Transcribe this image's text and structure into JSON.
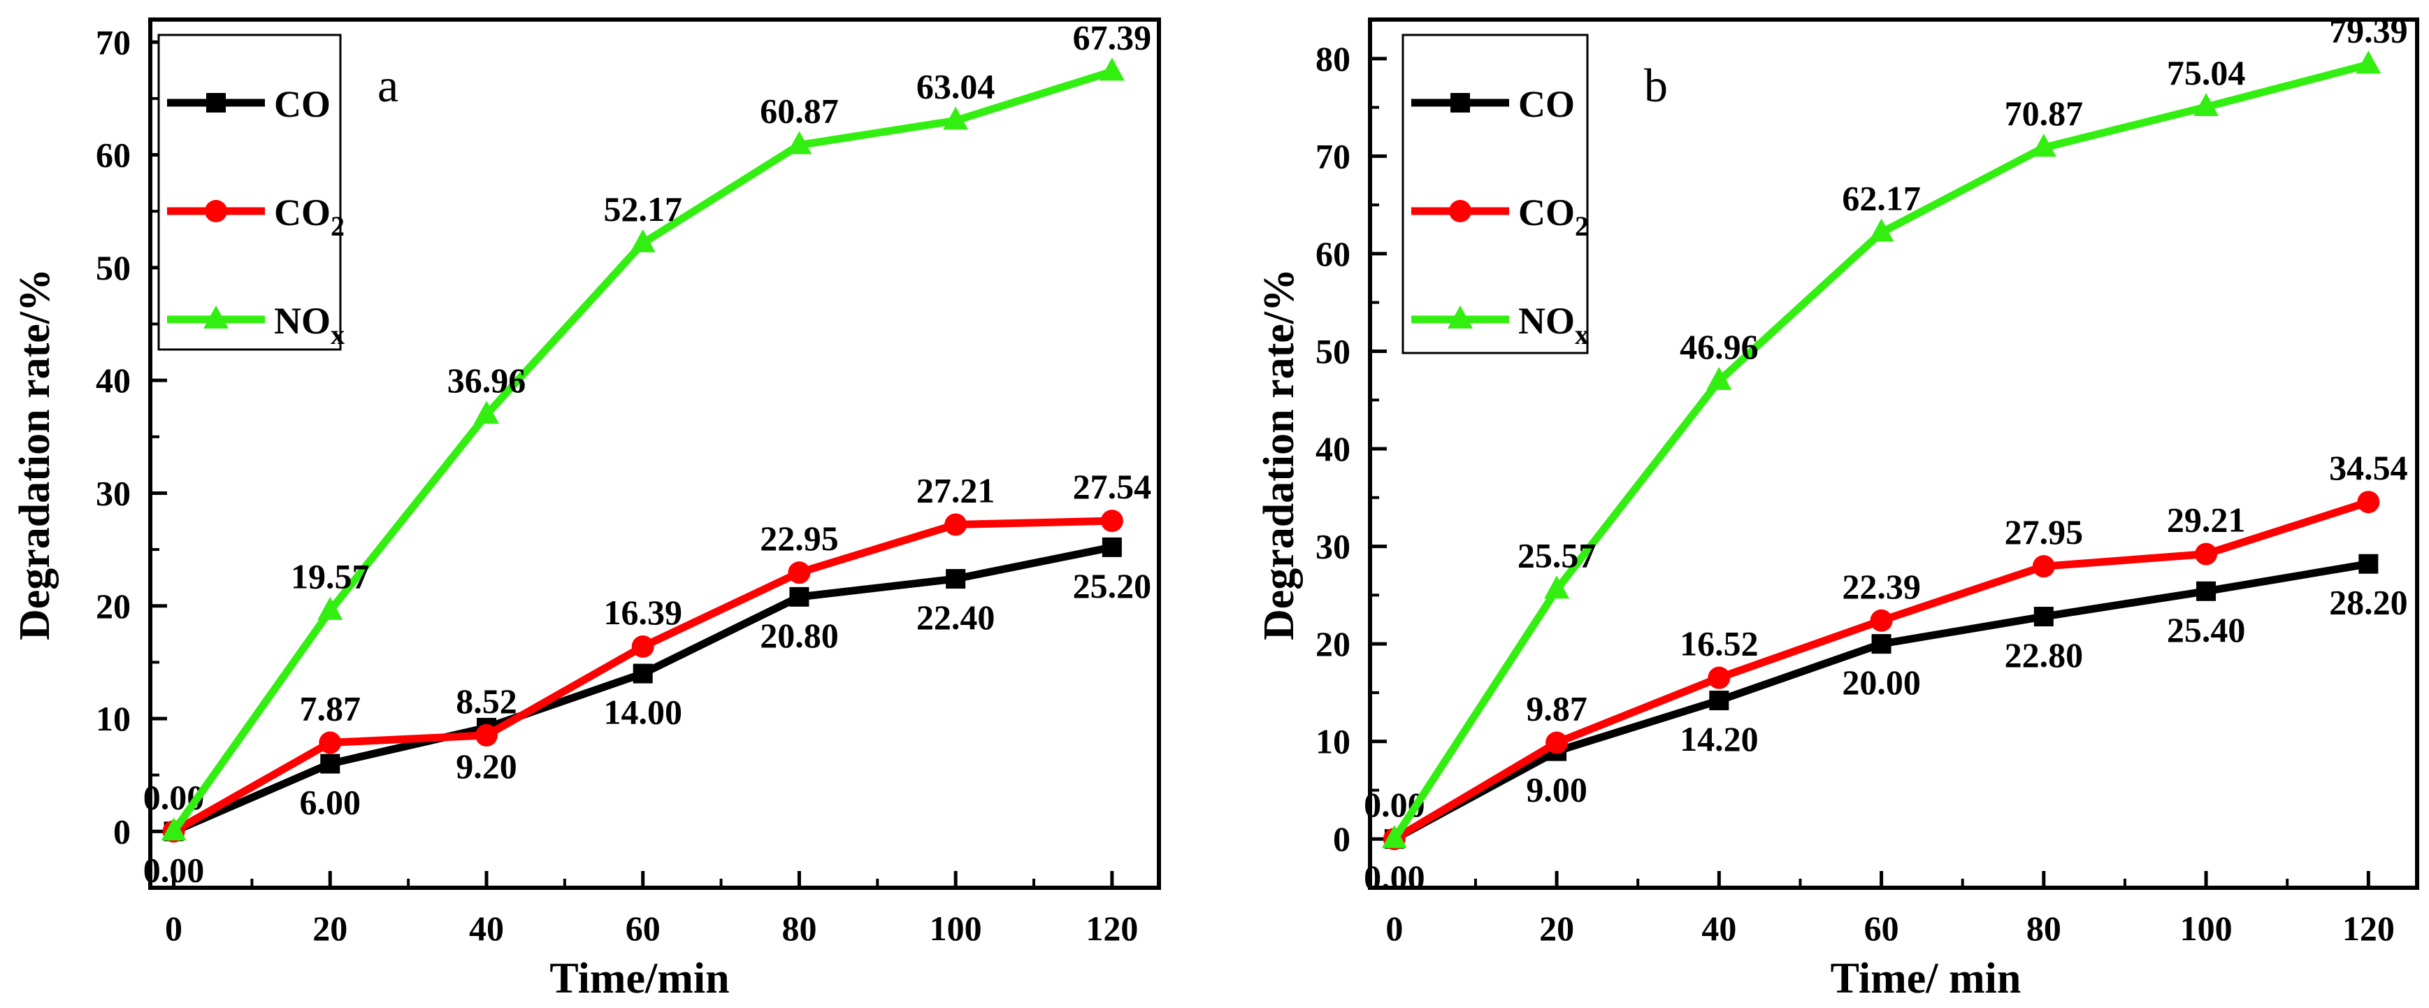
{
  "chart_data": [
    {
      "type": "line",
      "panel_label": "a",
      "xlabel": "Time/min",
      "ylabel": "Degradation rate/%",
      "x": [
        0,
        20,
        40,
        60,
        80,
        100,
        120
      ],
      "xlim": [
        -3,
        126
      ],
      "ylim": [
        -5,
        72
      ],
      "xticks": [
        0,
        20,
        40,
        60,
        80,
        100,
        120
      ],
      "yticks": [
        0,
        10,
        20,
        30,
        40,
        50,
        60,
        70
      ],
      "legend_position": "top-left",
      "series": [
        {
          "name": "CO",
          "name_main": "CO",
          "name_sub": "",
          "color": "#000000",
          "marker": "square",
          "values": [
            0,
            6,
            9.2,
            14,
            20.8,
            22.4,
            25.2
          ],
          "labels": [
            "0.00",
            "6.00",
            "9.20",
            "14.00",
            "20.80",
            "22.40",
            "25.20"
          ],
          "label_pos": [
            "below",
            "below",
            "below",
            "below",
            "below",
            "below",
            "below"
          ]
        },
        {
          "name": "CO2",
          "name_main": "CO",
          "name_sub": "2",
          "color": "#ff0000",
          "marker": "circle",
          "values": [
            0,
            7.87,
            8.52,
            16.39,
            22.95,
            27.21,
            27.54
          ],
          "labels": [
            "0.00",
            "7.87",
            "8.52",
            "16.39",
            "22.95",
            "27.21",
            "27.54"
          ],
          "label_pos": [
            "above",
            "above",
            "above",
            "above",
            "above",
            "above",
            "above"
          ]
        },
        {
          "name": "NOx",
          "name_main": "NO",
          "name_sub": "x",
          "color": "#33ee11",
          "marker": "triangle",
          "values": [
            0,
            19.57,
            36.96,
            52.17,
            60.87,
            63.04,
            67.39
          ],
          "labels": [
            "",
            "19.57",
            "36.96",
            "52.17",
            "60.87",
            "63.04",
            "67.39"
          ],
          "label_pos": [
            "above",
            "above",
            "above",
            "above",
            "above",
            "above",
            "above"
          ]
        }
      ]
    },
    {
      "type": "line",
      "panel_label": "b",
      "xlabel": "Time/ min",
      "ylabel": "Degradation rate/%",
      "x": [
        0,
        20,
        40,
        60,
        80,
        100,
        120
      ],
      "xlim": [
        -3,
        126
      ],
      "ylim": [
        -5,
        84
      ],
      "xticks": [
        0,
        20,
        40,
        60,
        80,
        100,
        120
      ],
      "yticks": [
        0,
        10,
        20,
        30,
        40,
        50,
        60,
        70,
        80
      ],
      "legend_position": "top-left",
      "series": [
        {
          "name": "CO",
          "name_main": "CO",
          "name_sub": "",
          "color": "#000000",
          "marker": "square",
          "values": [
            0,
            9,
            14.2,
            20,
            22.8,
            25.4,
            28.2
          ],
          "labels": [
            "0.00",
            "9.00",
            "14.20",
            "20.00",
            "22.80",
            "25.40",
            "28.20"
          ],
          "label_pos": [
            "below",
            "below",
            "below",
            "below",
            "below",
            "below",
            "below"
          ]
        },
        {
          "name": "CO2",
          "name_main": "CO",
          "name_sub": "2",
          "color": "#ff0000",
          "marker": "circle",
          "values": [
            0,
            9.87,
            16.52,
            22.39,
            27.95,
            29.21,
            34.54
          ],
          "labels": [
            "0.00",
            "9.87",
            "16.52",
            "22.39",
            "27.95",
            "29.21",
            "34.54"
          ],
          "label_pos": [
            "above",
            "above",
            "above",
            "above",
            "above",
            "above",
            "above"
          ]
        },
        {
          "name": "NOx",
          "name_main": "NO",
          "name_sub": "x",
          "color": "#33ee11",
          "marker": "triangle",
          "values": [
            0,
            25.57,
            46.96,
            62.17,
            70.87,
            75.04,
            79.39
          ],
          "labels": [
            "",
            "25.57",
            "46.96",
            "62.17",
            "70.87",
            "75.04",
            "79.39"
          ],
          "label_pos": [
            "above",
            "above",
            "above",
            "above",
            "above",
            "above",
            "above"
          ]
        }
      ]
    }
  ]
}
